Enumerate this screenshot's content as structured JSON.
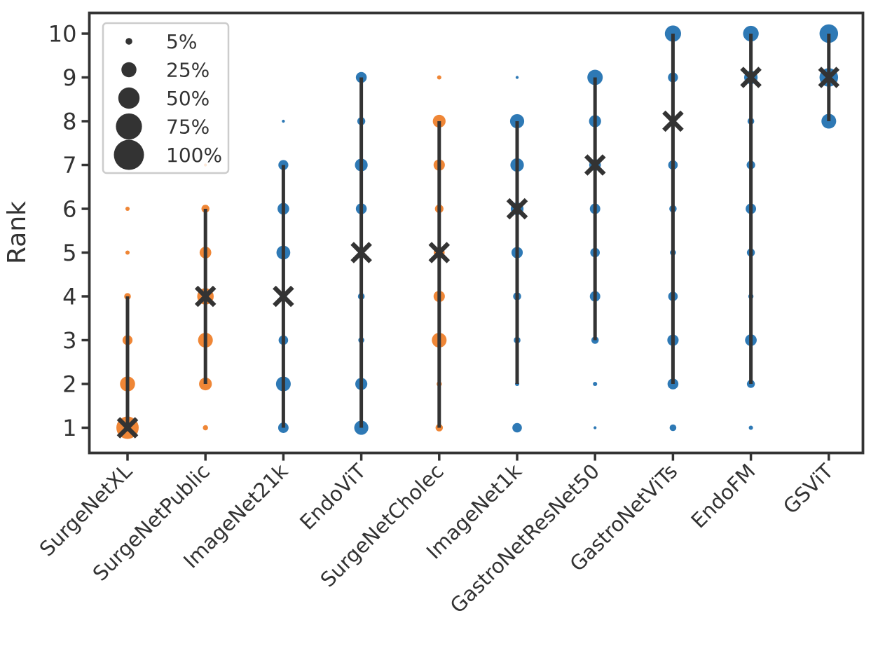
{
  "figure": {
    "background": "#ffffff"
  },
  "chart_data": {
    "type": "scatter",
    "title": "",
    "xlabel": "",
    "ylabel": "Rank",
    "yticks": [
      1,
      2,
      3,
      4,
      5,
      6,
      7,
      8,
      9,
      10
    ],
    "ylim": [
      0.5,
      10.6
    ],
    "grid": false,
    "size_encoding": "bubble area encodes percentage of experiments achieving that rank",
    "legend": {
      "position": "upper left",
      "entries": [
        {
          "pct": 5,
          "label": "5%"
        },
        {
          "pct": 25,
          "label": "25%"
        },
        {
          "pct": 50,
          "label": "50%"
        },
        {
          "pct": 75,
          "label": "75%"
        },
        {
          "pct": 100,
          "label": "100%"
        }
      ]
    },
    "colors": {
      "blue": "#2e79b5",
      "orange": "#ef8636",
      "dark": "#333333",
      "legend_border": "#cccccc",
      "legend_fill": "#ffffff"
    },
    "x_categories": [
      "SurgeNetXL",
      "SurgeNetPublic",
      "ImageNet21k",
      "EndoViT",
      "SurgeNetCholec",
      "ImageNet1k",
      "GastroNetResNet50",
      "GastroNetViTs",
      "EndoFM",
      "GSViT"
    ],
    "series": [
      {
        "name": "SurgeNetXL",
        "color": "orange",
        "median_rank": 1,
        "rank_range": [
          1,
          4
        ],
        "rank_pct": {
          "1": 55,
          "2": 25,
          "3": 11,
          "4": 5,
          "5": 2,
          "6": 2
        }
      },
      {
        "name": "SurgeNetPublic",
        "color": "orange",
        "median_rank": 4,
        "rank_range": [
          2,
          6
        ],
        "rank_pct": {
          "1": 3,
          "2": 18,
          "3": 24,
          "4": 30,
          "5": 15,
          "6": 7,
          "7": 1
        }
      },
      {
        "name": "ImageNet21k",
        "color": "blue",
        "median_rank": 4,
        "rank_range": [
          1,
          7
        ],
        "rank_pct": {
          "1": 12,
          "2": 24,
          "3": 10,
          "4": 6,
          "5": 21,
          "6": 15,
          "7": 11,
          "8": 1
        }
      },
      {
        "name": "EndoViT",
        "color": "blue",
        "median_rank": 5,
        "rank_range": [
          1,
          9
        ],
        "rank_pct": {
          "1": 22,
          "2": 16,
          "3": 4,
          "4": 5,
          "5": 3,
          "6": 13,
          "7": 18,
          "8": 7,
          "9": 13
        }
      },
      {
        "name": "SurgeNetCholec",
        "color": "orange",
        "median_rank": 5,
        "rank_range": [
          1,
          8
        ],
        "rank_pct": {
          "1": 6,
          "2": 3,
          "3": 24,
          "4": 14,
          "5": 13,
          "6": 8,
          "7": 14,
          "8": 18,
          "9": 2
        }
      },
      {
        "name": "ImageNet1k",
        "color": "blue",
        "median_rank": 6,
        "rank_range": [
          2,
          8
        ],
        "rank_pct": {
          "1": 10,
          "2": 2,
          "3": 5,
          "4": 7,
          "5": 14,
          "6": 18,
          "7": 20,
          "8": 22,
          "9": 1
        }
      },
      {
        "name": "GastroNetResNet50",
        "color": "blue",
        "median_rank": 7,
        "rank_range": [
          3,
          9
        ],
        "rank_pct": {
          "1": 1,
          "2": 2,
          "3": 6,
          "4": 12,
          "5": 10,
          "6": 12,
          "7": 15,
          "8": 16,
          "9": 26
        }
      },
      {
        "name": "GastroNetViTs",
        "color": "blue",
        "median_rank": 8,
        "rank_range": [
          2,
          10
        ],
        "rank_pct": {
          "1": 5,
          "2": 13,
          "3": 14,
          "4": 10,
          "5": 4,
          "6": 6,
          "7": 10,
          "8": 2,
          "9": 11,
          "10": 29
        }
      },
      {
        "name": "EndoFM",
        "color": "blue",
        "median_rank": 9,
        "rank_range": [
          2,
          10
        ],
        "rank_pct": {
          "1": 2,
          "2": 7,
          "3": 15,
          "4": 3,
          "5": 7,
          "6": 12,
          "7": 8,
          "8": 5,
          "9": 20,
          "10": 27
        }
      },
      {
        "name": "GSViT",
        "color": "blue",
        "median_rank": 9,
        "rank_range": [
          8,
          10
        ],
        "rank_pct": {
          "8": 24,
          "9": 38,
          "10": 38
        }
      }
    ]
  }
}
